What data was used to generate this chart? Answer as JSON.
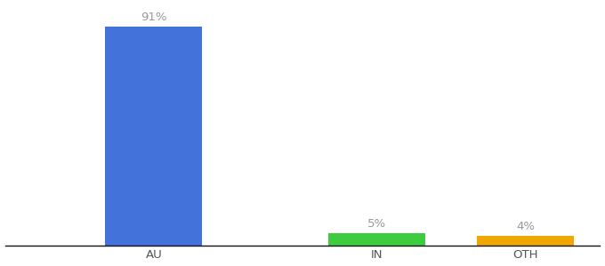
{
  "categories": [
    "AU",
    "IN",
    "OTH"
  ],
  "values": [
    91,
    5,
    4
  ],
  "bar_colors": [
    "#4472db",
    "#3dcc3d",
    "#f0a800"
  ],
  "labels": [
    "91%",
    "5%",
    "4%"
  ],
  "ylim": [
    0,
    100
  ],
  "background_color": "#ffffff",
  "label_color": "#999999",
  "tick_color": "#555555",
  "bar_width": 0.65,
  "label_fontsize": 9.5,
  "tick_fontsize": 9.5,
  "xlim": [
    -0.5,
    3.5
  ]
}
